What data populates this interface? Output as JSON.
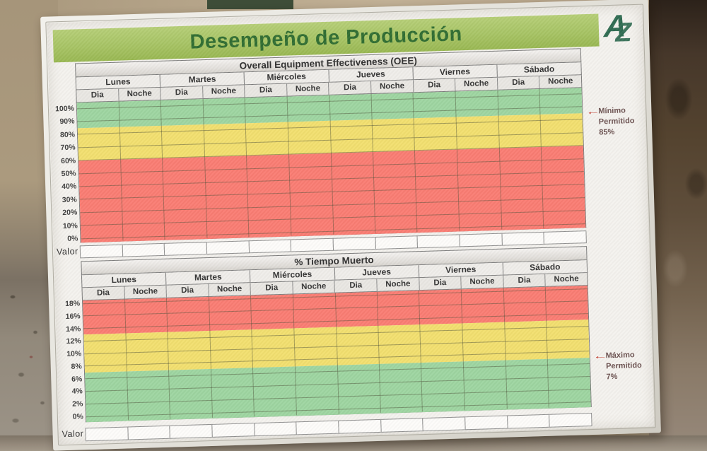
{
  "board": {
    "title": "Desempeño de Producción",
    "logo": {
      "a": "A",
      "z": "Z"
    }
  },
  "days": [
    "Lunes",
    "Martes",
    "Miércoles",
    "Jueves",
    "Viernes",
    "Sábado"
  ],
  "shifts": [
    "Dia",
    "Noche"
  ],
  "valor_label": "Valor",
  "annotations": [
    {
      "arrow": "←",
      "lines": [
        "Mínimo",
        "Permitido",
        "85%"
      ],
      "chart": 0,
      "value": 85
    },
    {
      "arrow": "←",
      "lines": [
        "Máximo",
        "Permitido",
        "7%"
      ],
      "chart": 1,
      "value": 7
    }
  ],
  "colors": {
    "banner_green": "#a6c363",
    "title_green": "#2e6c30",
    "logo_green": "#2d6a50",
    "band_green": "#9dd5a0",
    "band_yellow": "#f2df6e",
    "band_red": "#fa7b72",
    "arrow_red": "#c23b2e",
    "board_white": "#f4f2ee",
    "frame_silver": "#e3e1da"
  },
  "chart_data": [
    {
      "type": "area",
      "title": "Overall Equipment Effectiveness (OEE)",
      "x_categories": [
        "Lunes",
        "Martes",
        "Miércoles",
        "Jueves",
        "Viernes",
        "Sábado"
      ],
      "x_subcategories": [
        "Dia",
        "Noche"
      ],
      "ylim": [
        0,
        100
      ],
      "ytick_step": 10,
      "ytick_labels": [
        "100%",
        "90%",
        "80%",
        "70%",
        "60%",
        "50%",
        "40%",
        "30%",
        "20%",
        "10%",
        "0%"
      ],
      "grid": true,
      "bands": [
        {
          "zone": "green",
          "from": 85,
          "to": 100,
          "color": "#9dd5a0"
        },
        {
          "zone": "yellow",
          "from": 60,
          "to": 85,
          "color": "#f2df6e"
        },
        {
          "zone": "red",
          "from": 0,
          "to": 60,
          "color": "#fa7b72"
        }
      ],
      "threshold": {
        "value": 85,
        "label": "Mínimo Permitido 85%"
      },
      "series": [],
      "valor_row_values": [
        "",
        "",
        "",
        "",
        "",
        "",
        "",
        "",
        "",
        "",
        "",
        ""
      ]
    },
    {
      "type": "area",
      "title": "% Tiempo Muerto",
      "x_categories": [
        "Lunes",
        "Martes",
        "Miércoles",
        "Jueves",
        "Viernes",
        "Sábado"
      ],
      "x_subcategories": [
        "Dia",
        "Noche"
      ],
      "ylim": [
        0,
        18
      ],
      "ytick_step": 2,
      "ytick_labels": [
        "18%",
        "16%",
        "14%",
        "12%",
        "10%",
        "8%",
        "6%",
        "4%",
        "2%",
        "0%"
      ],
      "grid": true,
      "bands": [
        {
          "zone": "red",
          "from": 13,
          "to": 18,
          "color": "#fa7b72"
        },
        {
          "zone": "yellow",
          "from": 7,
          "to": 13,
          "color": "#f2df6e"
        },
        {
          "zone": "green",
          "from": 0,
          "to": 7,
          "color": "#9dd5a0"
        }
      ],
      "threshold": {
        "value": 7,
        "label": "Máximo Permitido 7%"
      },
      "series": [],
      "valor_row_values": [
        "",
        "",
        "",
        "",
        "",
        "",
        "",
        "",
        "",
        "",
        "",
        ""
      ]
    }
  ]
}
